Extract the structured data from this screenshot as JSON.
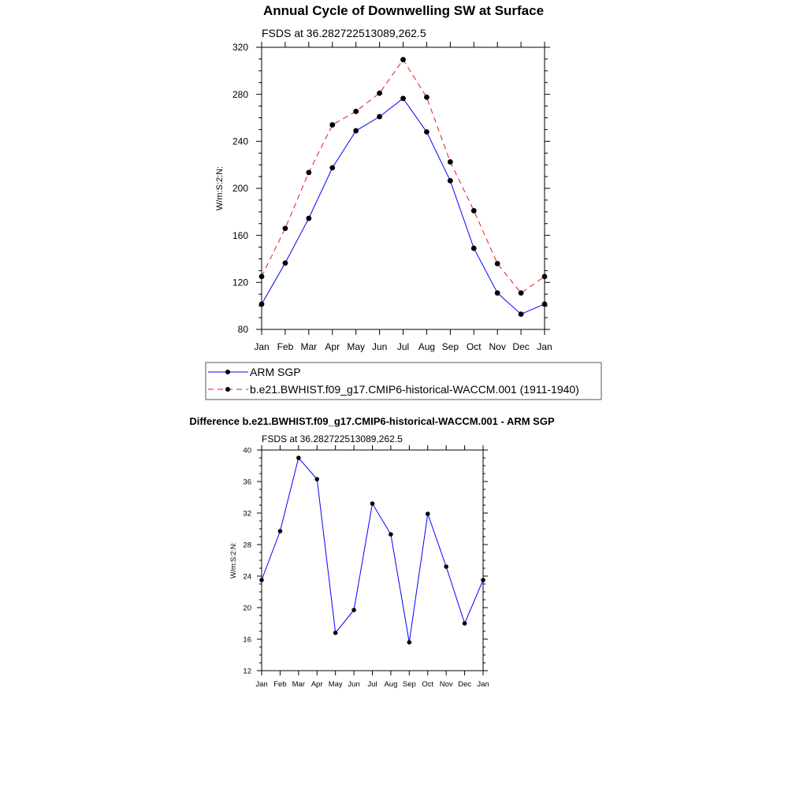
{
  "chart_data": [
    {
      "type": "line",
      "title": "Annual Cycle of Downwelling SW at Surface",
      "subtitle": "FSDS at 36.282722513089,262.5",
      "ylabel": "W/m:S:2:N:",
      "categories": [
        "Jan",
        "Feb",
        "Mar",
        "Apr",
        "May",
        "Jun",
        "Jul",
        "Aug",
        "Sep",
        "Oct",
        "Nov",
        "Dec",
        "Jan"
      ],
      "ylim": [
        80,
        320
      ],
      "yticks": [
        "320",
        "280",
        "240",
        "200",
        "160",
        "120",
        "80"
      ],
      "legend_position": "below",
      "series": [
        {
          "name": "ARM SGP",
          "color": "#0000ff",
          "dash": "solid",
          "values": [
            101.5,
            136.5,
            174.5,
            217.5,
            249.0,
            261.0,
            276.5,
            248.0,
            206.5,
            149.0,
            111.0,
            93.0,
            101.5
          ]
        },
        {
          "name": "b.e21.BWHIST.f09_g17.CMIP6-historical-WACCM.001 (1911-1940)",
          "color": "#e41a1c",
          "dash": "dashed",
          "values": [
            125.0,
            166.0,
            213.5,
            254.0,
            265.5,
            281.0,
            309.5,
            277.5,
            222.5,
            181.0,
            136.0,
            111.0,
            125.0
          ]
        }
      ]
    },
    {
      "type": "line",
      "title": "Difference b.e21.BWHIST.f09_g17.CMIP6-historical-WACCM.001 - ARM SGP",
      "subtitle": "FSDS at 36.282722513089,262.5",
      "ylabel": "W/m:S:2:N:",
      "categories": [
        "Jan",
        "Feb",
        "Mar",
        "Apr",
        "May",
        "Jun",
        "Jul",
        "Aug",
        "Sep",
        "Oct",
        "Nov",
        "Dec",
        "Jan"
      ],
      "ylim": [
        12,
        40
      ],
      "yticks": [
        "40",
        "36",
        "32",
        "28",
        "24",
        "20",
        "16",
        "12"
      ],
      "series": [
        {
          "color": "#0000ff",
          "values": [
            23.5,
            29.7,
            39.0,
            36.3,
            16.8,
            19.7,
            33.2,
            29.3,
            15.6,
            31.9,
            25.2,
            18.0,
            23.5
          ]
        }
      ]
    }
  ]
}
